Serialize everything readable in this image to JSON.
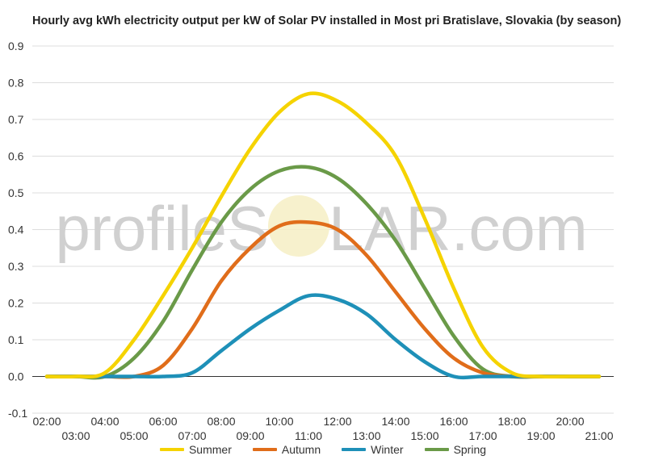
{
  "watermark": {
    "left_text": "profileS",
    "right_text": "LAR.com"
  },
  "chart_data": {
    "type": "line",
    "title": "Hourly avg kWh electricity output per kW of Solar PV installed in Most pri Bratislave, Slovakia (by season)",
    "xlabel": "",
    "ylabel": "",
    "ylim": [
      -0.1,
      0.9
    ],
    "y_ticks": [
      -0.1,
      0.0,
      0.1,
      0.2,
      0.3,
      0.4,
      0.5,
      0.6,
      0.7,
      0.8,
      0.9
    ],
    "x_tick_labels": [
      "02:00",
      "03:00",
      "04:00",
      "05:00",
      "06:00",
      "07:00",
      "08:00",
      "09:00",
      "10:00",
      "11:00",
      "12:00",
      "13:00",
      "14:00",
      "15:00",
      "16:00",
      "17:00",
      "18:00",
      "19:00",
      "20:00",
      "21:00"
    ],
    "x": [
      "02:00",
      "03:00",
      "04:00",
      "05:00",
      "06:00",
      "07:00",
      "08:00",
      "09:00",
      "10:00",
      "11:00",
      "12:00",
      "13:00",
      "14:00",
      "15:00",
      "16:00",
      "17:00",
      "18:00",
      "19:00",
      "20:00",
      "21:00"
    ],
    "grid": true,
    "legend_position": "bottom",
    "series": [
      {
        "name": "Summer",
        "color": "#f5d300",
        "values": [
          0.0,
          0.0,
          0.01,
          0.1,
          0.22,
          0.35,
          0.49,
          0.62,
          0.72,
          0.77,
          0.75,
          0.69,
          0.6,
          0.43,
          0.24,
          0.08,
          0.01,
          0.0,
          0.0,
          0.0
        ]
      },
      {
        "name": "Autumn",
        "color": "#e06d1a",
        "values": [
          0.0,
          0.0,
          0.0,
          0.0,
          0.03,
          0.13,
          0.26,
          0.35,
          0.41,
          0.42,
          0.4,
          0.33,
          0.23,
          0.13,
          0.05,
          0.01,
          0.0,
          0.0,
          0.0,
          0.0
        ]
      },
      {
        "name": "Winter",
        "color": "#1e90b8",
        "values": [
          0.0,
          0.0,
          0.0,
          0.0,
          0.0,
          0.01,
          0.07,
          0.13,
          0.18,
          0.22,
          0.21,
          0.17,
          0.1,
          0.04,
          0.0,
          0.0,
          0.0,
          0.0,
          0.0,
          0.0
        ]
      },
      {
        "name": "Spring",
        "color": "#6a9a48",
        "values": [
          0.0,
          0.0,
          0.0,
          0.05,
          0.15,
          0.29,
          0.42,
          0.51,
          0.56,
          0.57,
          0.54,
          0.47,
          0.37,
          0.24,
          0.11,
          0.02,
          0.0,
          0.0,
          0.0,
          0.0
        ]
      }
    ]
  }
}
